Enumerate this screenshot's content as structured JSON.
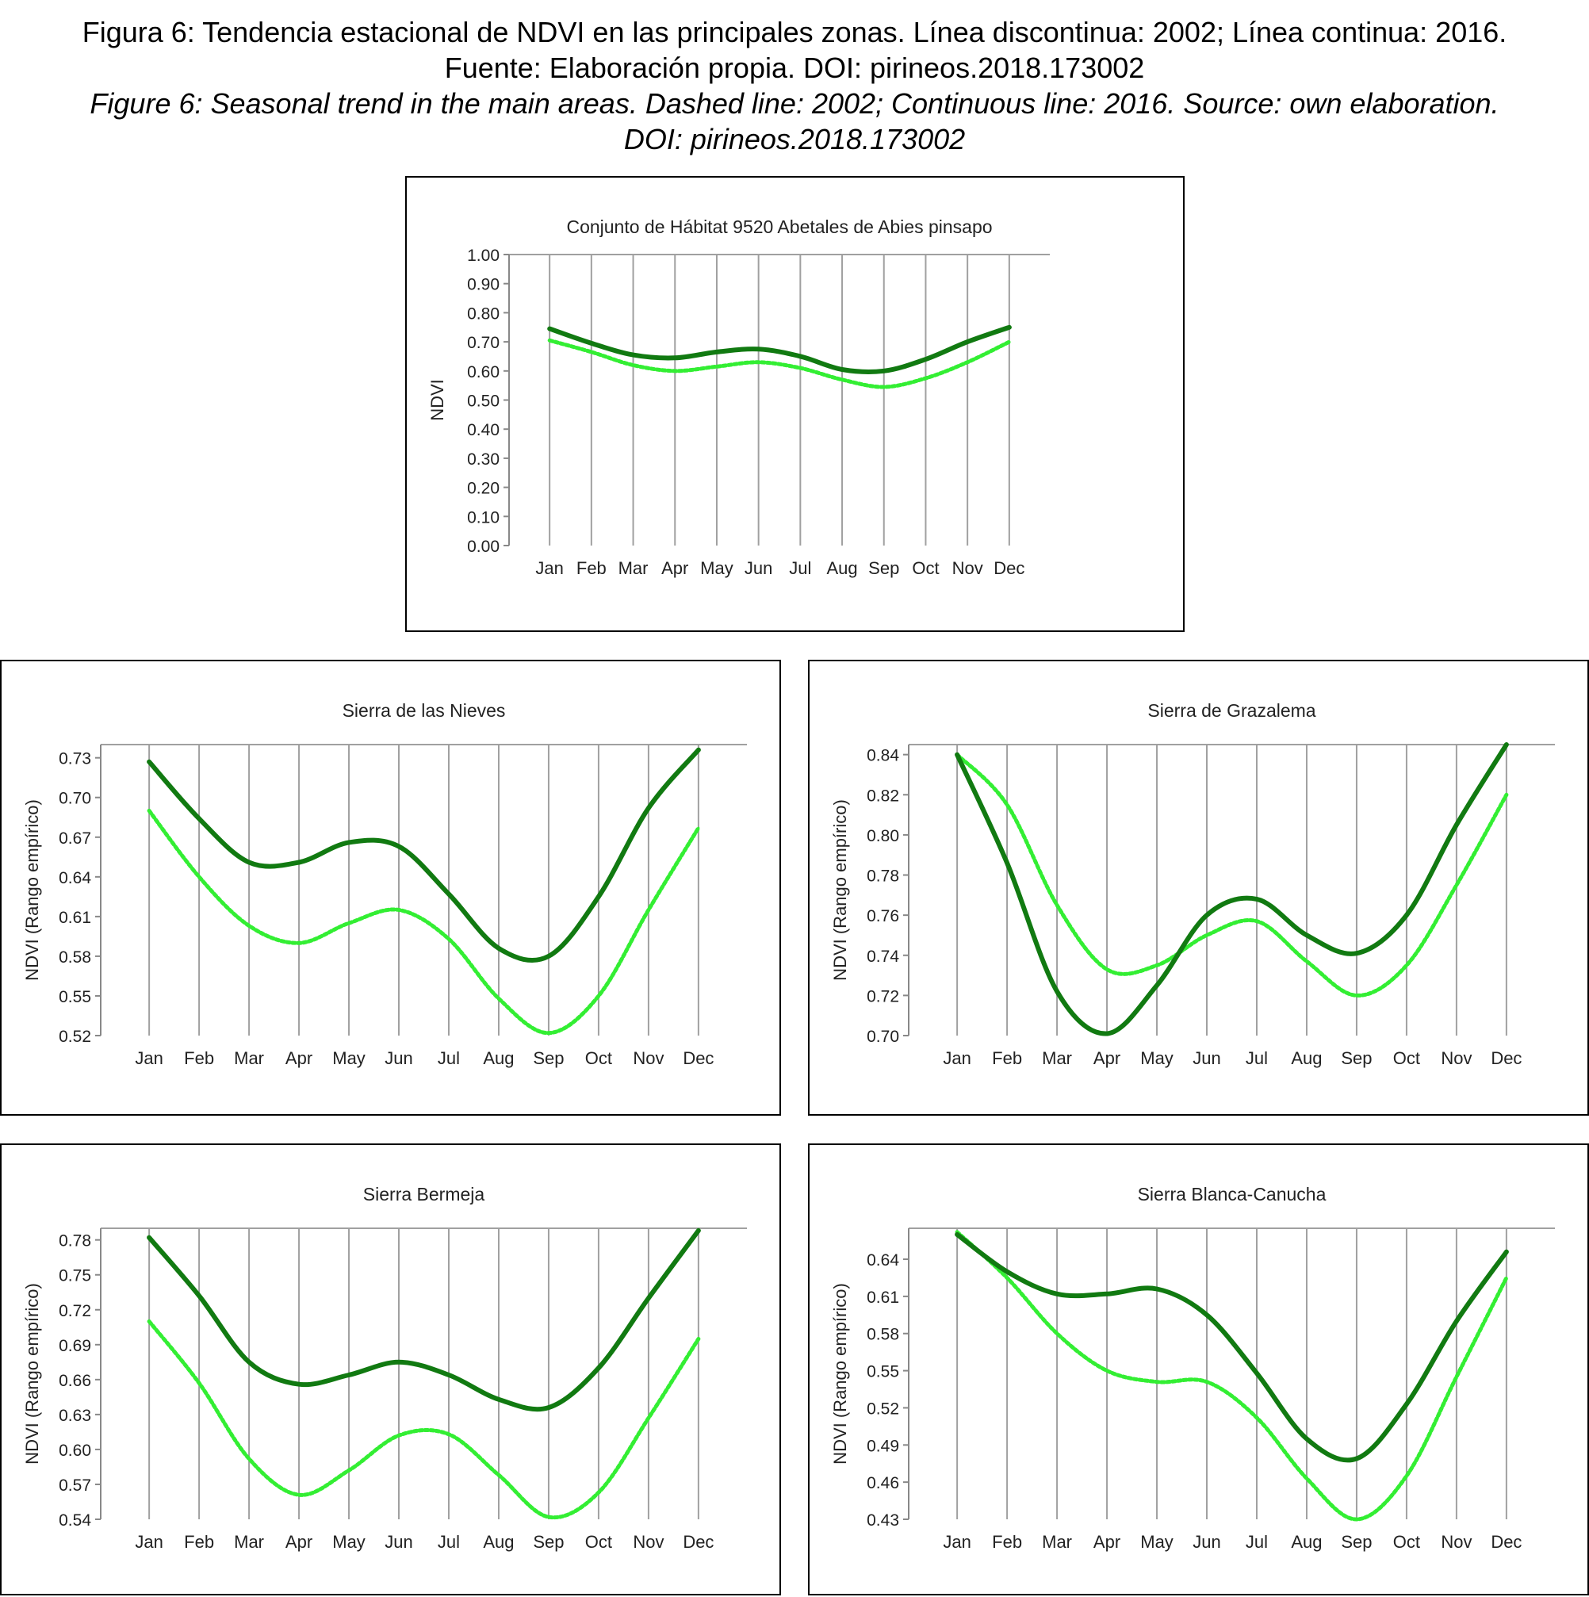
{
  "caption": {
    "es_line1": "Figura 6: Tendencia estacional de NDVI en las principales zonas. Línea discontinua: 2002; Línea continua: 2016.",
    "es_line2": "Fuente: Elaboración propia. DOI: pirineos.2018.173002",
    "en_line1": "Figure 6: Seasonal trend in the main areas. Dashed line: 2002; Continuous line: 2016. Source: own elaboration.",
    "en_line2": "DOI: pirineos.2018.173002"
  },
  "colors": {
    "line_2016": "#117a11",
    "line_2002": "#33ee33",
    "grid": "#a0a0a0",
    "axis": "#888888"
  },
  "chart_data": [
    {
      "type": "line",
      "title": "Conjunto de Hábitat 9520 Abetales de Abies pinsapo",
      "ylabel": "NDVI",
      "xlabel": "",
      "categories": [
        "Jan",
        "Feb",
        "Mar",
        "Apr",
        "May",
        "Jun",
        "Jul",
        "Aug",
        "Sep",
        "Oct",
        "Nov",
        "Dec"
      ],
      "ylim": [
        0.0,
        1.0
      ],
      "yticks": [
        "0.00",
        "0.10",
        "0.20",
        "0.30",
        "0.40",
        "0.50",
        "0.60",
        "0.70",
        "0.80",
        "0.90",
        "1.00"
      ],
      "grid": "vertical",
      "series": [
        {
          "style": "solid",
          "values": [
            0.745,
            0.695,
            0.655,
            0.645,
            0.665,
            0.675,
            0.65,
            0.605,
            0.6,
            0.64,
            0.7,
            0.75
          ]
        },
        {
          "style": "dashed",
          "values": [
            0.705,
            0.665,
            0.62,
            0.6,
            0.615,
            0.63,
            0.61,
            0.57,
            0.545,
            0.575,
            0.63,
            0.7
          ]
        }
      ]
    },
    {
      "type": "line",
      "title": "Sierra de las Nieves",
      "ylabel": "NDVI (Rango empírico)",
      "xlabel": "",
      "categories": [
        "Jan",
        "Feb",
        "Mar",
        "Apr",
        "May",
        "Jun",
        "Jul",
        "Aug",
        "Sep",
        "Oct",
        "Nov",
        "Dec"
      ],
      "ylim": [
        0.52,
        0.74
      ],
      "yticks": [
        "0.52",
        "0.55",
        "0.58",
        "0.61",
        "0.64",
        "0.67",
        "0.70",
        "0.73"
      ],
      "grid": "vertical",
      "series": [
        {
          "style": "solid",
          "values": [
            0.727,
            0.684,
            0.651,
            0.651,
            0.666,
            0.663,
            0.627,
            0.586,
            0.58,
            0.625,
            0.692,
            0.736
          ]
        },
        {
          "style": "dashed",
          "values": [
            0.69,
            0.64,
            0.603,
            0.59,
            0.605,
            0.615,
            0.593,
            0.548,
            0.522,
            0.55,
            0.615,
            0.677
          ]
        }
      ]
    },
    {
      "type": "line",
      "title": "Sierra de Grazalema",
      "ylabel": "NDVI (Rango empírico)",
      "xlabel": "",
      "categories": [
        "Jan",
        "Feb",
        "Mar",
        "Apr",
        "May",
        "Jun",
        "Jul",
        "Aug",
        "Sep",
        "Oct",
        "Nov",
        "Dec"
      ],
      "ylim": [
        0.7,
        0.845
      ],
      "yticks": [
        "0.70",
        "0.72",
        "0.74",
        "0.76",
        "0.78",
        "0.80",
        "0.82",
        "0.84"
      ],
      "grid": "vertical",
      "series": [
        {
          "style": "solid",
          "values": [
            0.84,
            0.786,
            0.722,
            0.701,
            0.725,
            0.76,
            0.768,
            0.75,
            0.741,
            0.76,
            0.805,
            0.845
          ]
        },
        {
          "style": "dashed",
          "values": [
            0.84,
            0.815,
            0.765,
            0.733,
            0.735,
            0.75,
            0.757,
            0.737,
            0.72,
            0.735,
            0.775,
            0.82
          ]
        }
      ]
    },
    {
      "type": "line",
      "title": "Sierra Bermeja",
      "ylabel": "NDVI (Rango empírico)",
      "xlabel": "",
      "categories": [
        "Jan",
        "Feb",
        "Mar",
        "Apr",
        "May",
        "Jun",
        "Jul",
        "Aug",
        "Sep",
        "Oct",
        "Nov",
        "Dec"
      ],
      "ylim": [
        0.54,
        0.79
      ],
      "yticks": [
        "0.54",
        "0.57",
        "0.60",
        "0.63",
        "0.66",
        "0.69",
        "0.72",
        "0.75",
        "0.78"
      ],
      "grid": "vertical",
      "series": [
        {
          "style": "solid",
          "values": [
            0.782,
            0.732,
            0.675,
            0.656,
            0.664,
            0.675,
            0.664,
            0.643,
            0.636,
            0.67,
            0.73,
            0.788
          ]
        },
        {
          "style": "dashed",
          "values": [
            0.71,
            0.657,
            0.592,
            0.561,
            0.582,
            0.612,
            0.613,
            0.578,
            0.542,
            0.563,
            0.627,
            0.695
          ]
        }
      ]
    },
    {
      "type": "line",
      "title": "Sierra Blanca-Canucha",
      "ylabel": "NDVI (Rango empírico)",
      "xlabel": "",
      "categories": [
        "Jan",
        "Feb",
        "Mar",
        "Apr",
        "May",
        "Jun",
        "Jul",
        "Aug",
        "Sep",
        "Oct",
        "Nov",
        "Dec"
      ],
      "ylim": [
        0.43,
        0.665
      ],
      "yticks": [
        "0.43",
        "0.46",
        "0.49",
        "0.52",
        "0.55",
        "0.58",
        "0.61",
        "0.64"
      ],
      "grid": "vertical",
      "series": [
        {
          "style": "solid",
          "values": [
            0.66,
            0.63,
            0.612,
            0.612,
            0.616,
            0.595,
            0.548,
            0.495,
            0.479,
            0.523,
            0.59,
            0.646
          ]
        },
        {
          "style": "dashed",
          "values": [
            0.662,
            0.625,
            0.58,
            0.55,
            0.541,
            0.541,
            0.512,
            0.463,
            0.43,
            0.465,
            0.545,
            0.625
          ]
        }
      ]
    }
  ]
}
